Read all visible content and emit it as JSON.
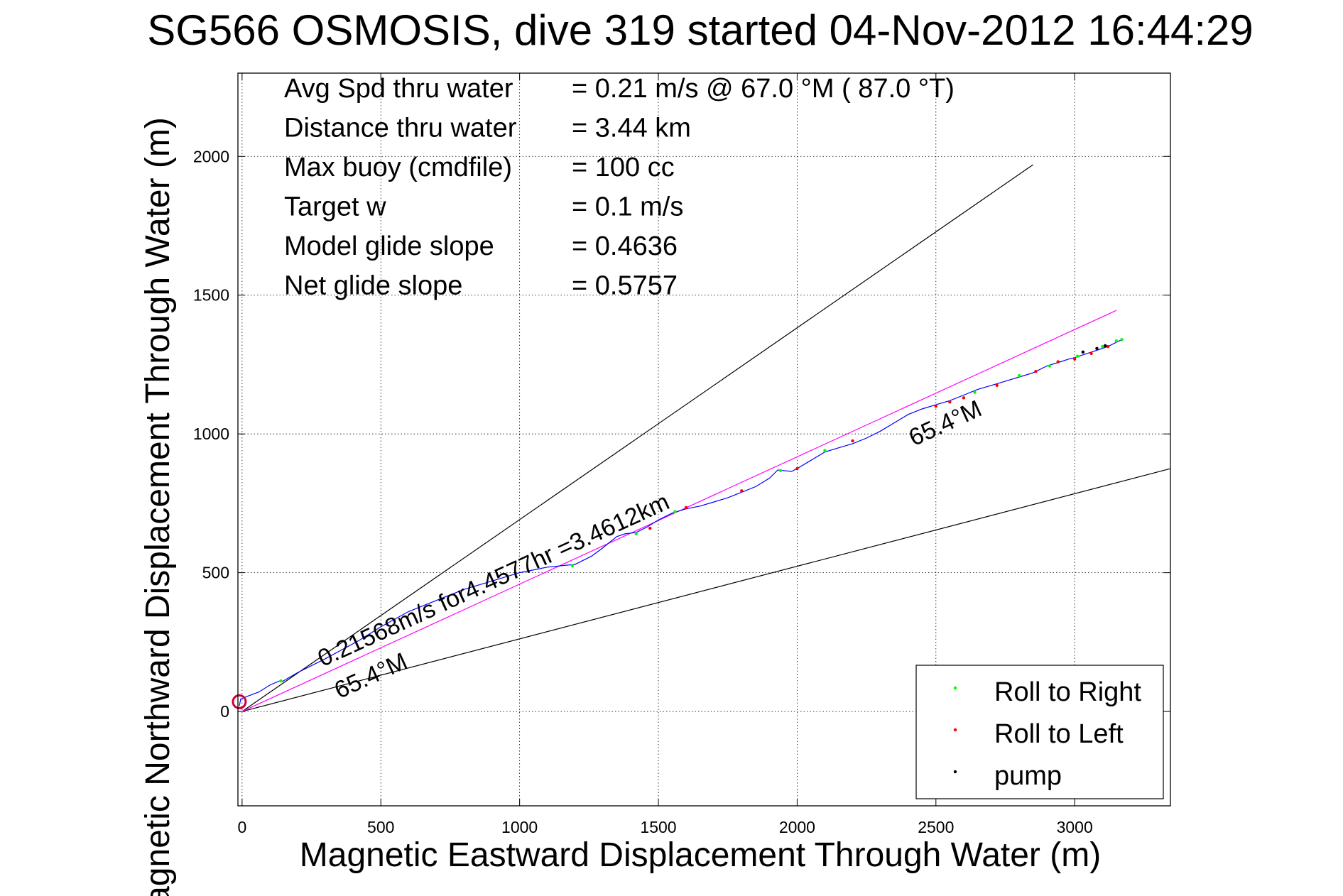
{
  "chart_data": {
    "type": "line",
    "title": "SG566 OSMOSIS, dive 319 started 04-Nov-2012 16:44:29",
    "xlabel": "Magnetic Eastward Displacement Through Water (m)",
    "ylabel": "Magnetic Northward Displacement Through Water (m)",
    "xlim": [
      -15,
      3345
    ],
    "ylim": [
      -340,
      2300
    ],
    "xticks": [
      0,
      500,
      1000,
      1500,
      2000,
      2500,
      3000
    ],
    "yticks": [
      0,
      500,
      1000,
      1500,
      2000
    ],
    "grid": true,
    "legend_position": "bottom-right",
    "info_rows": [
      {
        "label": "Avg Spd thru water",
        "value": "=  0.21 m/s @  67.0 °M ( 87.0 °T)"
      },
      {
        "label": "Distance thru water",
        "value": "=  3.44 km"
      },
      {
        "label": "Max buoy (cmdfile)",
        "value": "= 100 cc"
      },
      {
        "label": "Target w",
        "value": "= 0.1 m/s"
      },
      {
        "label": "Model glide slope",
        "value": "= 0.4636"
      },
      {
        "label": "Net glide slope",
        "value": "= 0.5757"
      }
    ],
    "annotations": [
      {
        "text": "0.21568m/s for4.4577hr =3.4612km",
        "x": 290,
        "y": 160,
        "angle_deg": 24.6
      },
      {
        "text": "65.4°M",
        "x": 350,
        "y": 45,
        "angle_deg": 24.6
      },
      {
        "text": "65.4°M",
        "x": 2420,
        "y": 955,
        "angle_deg": 24.6
      }
    ],
    "reference_lines": [
      {
        "name": "upper bound",
        "color": "#000000",
        "x": [
          0,
          2850
        ],
        "y": [
          0,
          1970
        ]
      },
      {
        "name": "lower bound",
        "color": "#000000",
        "x": [
          0,
          3345
        ],
        "y": [
          0,
          875
        ]
      },
      {
        "name": "heading line",
        "color": "#ff00ff",
        "x": [
          0,
          3150
        ],
        "y": [
          0,
          1445
        ]
      }
    ],
    "track": {
      "color": "#0000ff",
      "x": [
        -10,
        -5,
        20,
        60,
        100,
        135,
        145,
        200,
        300,
        420,
        500,
        600,
        700,
        800,
        900,
        1000,
        1100,
        1200,
        1260,
        1300,
        1350,
        1380,
        1420,
        1460,
        1500,
        1550,
        1600,
        1650,
        1700,
        1750,
        1800,
        1850,
        1900,
        1930,
        1950,
        1980,
        2000,
        2050,
        2100,
        2150,
        2200,
        2250,
        2300,
        2350,
        2400,
        2450,
        2500,
        2550,
        2600,
        2650,
        2700,
        2750,
        2800,
        2850,
        2900,
        2950,
        2980,
        3000,
        3030,
        3060,
        3090,
        3120,
        3150,
        3170
      ],
      "y": [
        20,
        45,
        55,
        70,
        95,
        110,
        108,
        140,
        190,
        255,
        305,
        360,
        400,
        440,
        470,
        500,
        520,
        530,
        560,
        590,
        630,
        640,
        645,
        665,
        690,
        715,
        730,
        740,
        755,
        770,
        790,
        810,
        840,
        870,
        868,
        865,
        875,
        905,
        935,
        950,
        965,
        985,
        1010,
        1040,
        1070,
        1090,
        1105,
        1120,
        1140,
        1160,
        1175,
        1190,
        1205,
        1220,
        1245,
        1260,
        1270,
        1275,
        1285,
        1295,
        1305,
        1315,
        1330,
        1340
      ]
    },
    "start_marker": {
      "color": "#cc0033",
      "x": -10,
      "y": 35
    },
    "series": [
      {
        "name": "Roll to Right",
        "color": "#00ff00",
        "marker": "dot",
        "x": [
          140,
          1190,
          1420,
          1560,
          1940,
          2100,
          2640,
          2800,
          2910,
          3010,
          3100,
          3150,
          3170
        ],
        "y": [
          110,
          525,
          640,
          720,
          868,
          940,
          1150,
          1210,
          1245,
          1280,
          1315,
          1335,
          1340
        ]
      },
      {
        "name": "Roll to Left",
        "color": "#ff0000",
        "marker": "dot",
        "x": [
          1470,
          1600,
          1800,
          2000,
          2200,
          2500,
          2550,
          2600,
          2720,
          2860,
          2940,
          3000,
          3060,
          3120
        ],
        "y": [
          660,
          735,
          795,
          875,
          975,
          1100,
          1115,
          1130,
          1175,
          1225,
          1260,
          1270,
          1290,
          1315
        ]
      },
      {
        "name": "pump",
        "color": "#000000",
        "marker": "dot",
        "x": [
          3030,
          3080,
          3110
        ],
        "y": [
          1295,
          1308,
          1318
        ]
      }
    ]
  }
}
